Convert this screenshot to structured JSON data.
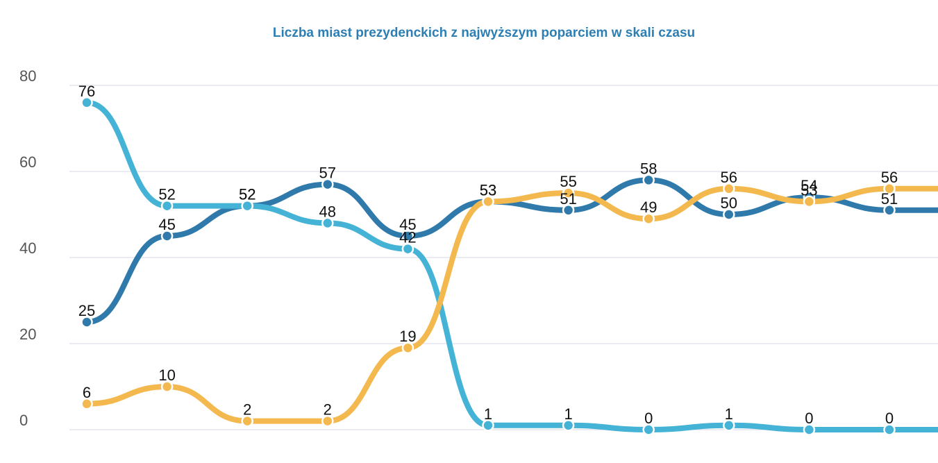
{
  "chart_data": {
    "type": "line",
    "title": "Liczba miast prezydenckich z najwyższym poparciem w skali czasu",
    "categories": [
      null,
      null,
      null,
      null,
      null,
      null,
      null,
      null,
      null,
      null,
      null
    ],
    "series": [
      {
        "name": null,
        "color": "#2f7aab",
        "values": [
          25,
          45,
          52,
          57,
          45,
          53,
          51,
          58,
          50,
          54,
          51
        ]
      },
      {
        "name": null,
        "color": "#45b3d6",
        "values": [
          76,
          52,
          52,
          48,
          42,
          1,
          1,
          0,
          1,
          0,
          0
        ]
      },
      {
        "name": null,
        "color": "#f3b94f",
        "values": [
          6,
          10,
          2,
          2,
          19,
          53,
          55,
          49,
          56,
          53,
          56
        ]
      }
    ],
    "ylim": [
      0,
      80
    ],
    "yticks": [
      0,
      20,
      40,
      60,
      80
    ],
    "grid": true
  }
}
